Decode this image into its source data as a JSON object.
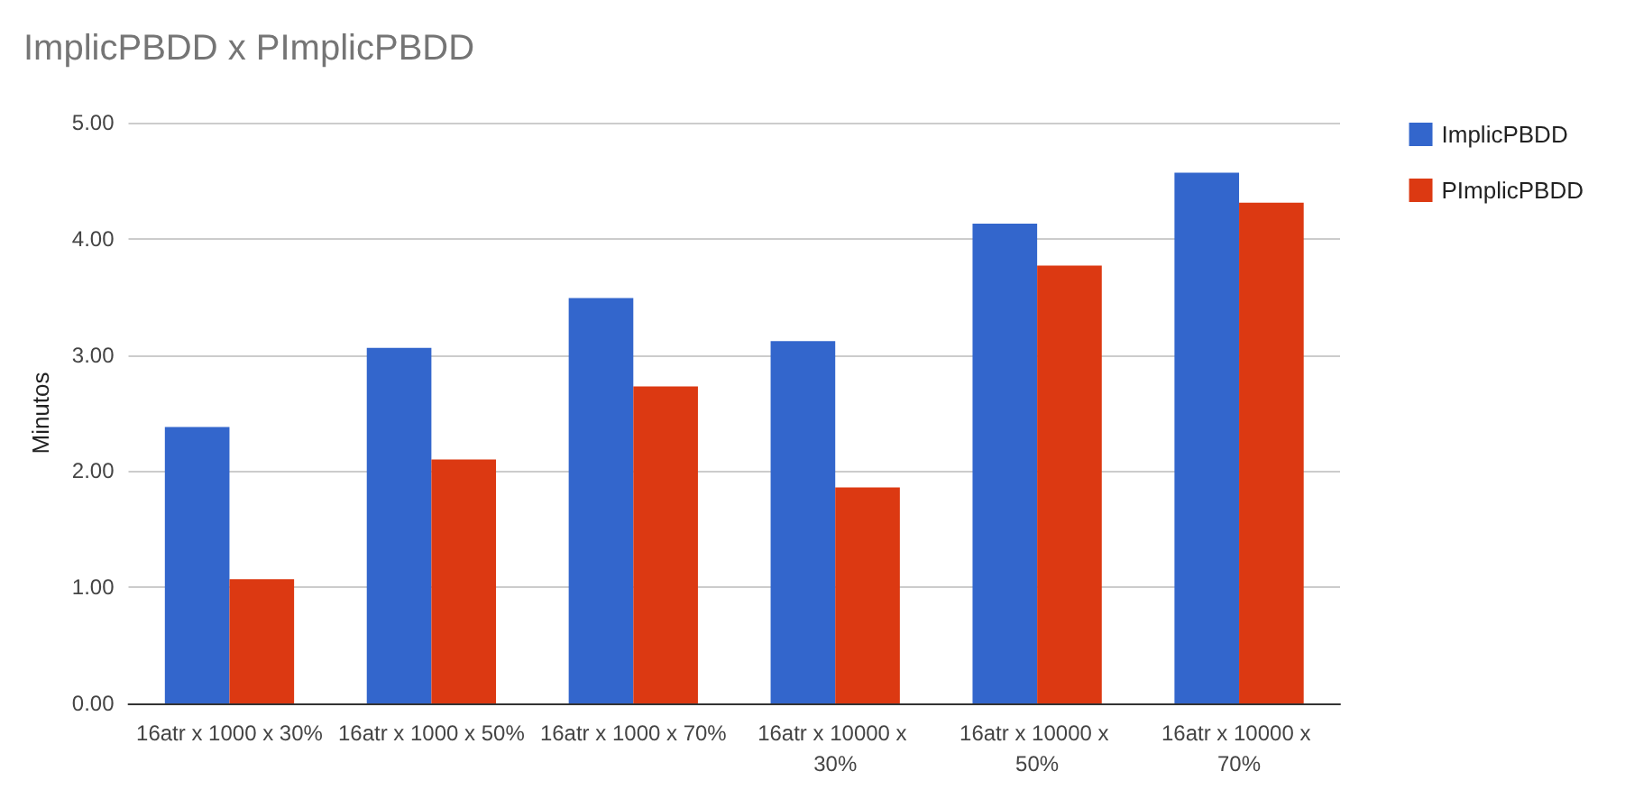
{
  "chart_data": {
    "type": "bar",
    "title": "ImplicPBDD x PImplicPBDD",
    "ylabel": "Minutos",
    "categories": [
      "16atr x 1000 x 30%",
      "16atr x 1000 x 50%",
      "16atr x 1000 x 70%",
      "16atr x 10000 x 30%",
      "16atr x 10000 x 50%",
      "16atr x 10000 x 70%"
    ],
    "series": [
      {
        "name": "ImplicPBDD",
        "color": "#3366cc",
        "values": [
          2.38,
          3.06,
          3.49,
          3.12,
          4.13,
          4.57
        ]
      },
      {
        "name": "PImplicPBDD",
        "color": "#dc3912",
        "values": [
          1.07,
          2.1,
          2.73,
          1.86,
          3.77,
          4.31
        ]
      }
    ],
    "ylim": [
      0,
      5
    ],
    "yticks": [
      {
        "value": 0,
        "label": "0.00"
      },
      {
        "value": 1,
        "label": "1.00"
      },
      {
        "value": 2,
        "label": "2.00"
      },
      {
        "value": 3,
        "label": "3.00"
      },
      {
        "value": 4,
        "label": "4.00"
      },
      {
        "value": 5,
        "label": "5.00"
      }
    ],
    "grid": "y",
    "legend": "top right"
  }
}
